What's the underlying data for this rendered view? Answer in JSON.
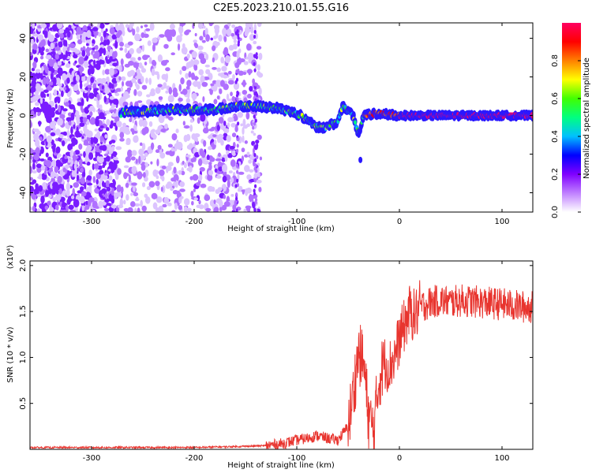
{
  "title": "C2E5.2023.210.01.55.G16",
  "colors": {
    "snr_line": "#e8342e",
    "axis": "#000000"
  },
  "chart_data": [
    {
      "type": "heatmap",
      "xlabel": "Height of straight line (km)",
      "ylabel": "Frequency (Hz)",
      "xlim": [
        -360,
        130
      ],
      "ylim": [
        -50,
        48
      ],
      "x_ticks": [
        -300,
        -200,
        -100,
        0,
        100
      ],
      "y_ticks": [
        -40,
        -20,
        0,
        20,
        40
      ],
      "colorbar": {
        "label": "Normalized spectral amplitude",
        "range": [
          0,
          1
        ],
        "ticks": [
          "0.0",
          "0.2",
          "0.4",
          "0.6",
          "0.8"
        ],
        "tick_values": [
          0,
          0.2,
          0.4,
          0.6,
          0.8
        ],
        "colormap": [
          "#ffffff",
          "#c080ff",
          "#8000ff",
          "#0000ff",
          "#00c0ff",
          "#00ff80",
          "#40ff00",
          "#ffff00",
          "#ff8000",
          "#ff0000",
          "#ff0060"
        ]
      },
      "ridge": [
        {
          "x": -270,
          "y": 2
        },
        {
          "x": -250,
          "y": 2
        },
        {
          "x": -220,
          "y": 3
        },
        {
          "x": -200,
          "y": 3
        },
        {
          "x": -180,
          "y": 3
        },
        {
          "x": -160,
          "y": 5
        },
        {
          "x": -140,
          "y": 5
        },
        {
          "x": -120,
          "y": 4
        },
        {
          "x": -100,
          "y": 1
        },
        {
          "x": -90,
          "y": -2
        },
        {
          "x": -80,
          "y": -6
        },
        {
          "x": -70,
          "y": -6
        },
        {
          "x": -60,
          "y": -3
        },
        {
          "x": -55,
          "y": 5
        },
        {
          "x": -45,
          "y": 0
        },
        {
          "x": -40,
          "y": -10
        },
        {
          "x": -35,
          "y": 0
        },
        {
          "x": -20,
          "y": 1
        },
        {
          "x": 0,
          "y": 0
        },
        {
          "x": 50,
          "y": 0
        },
        {
          "x": 100,
          "y": 0
        },
        {
          "x": 130,
          "y": 0
        }
      ]
    },
    {
      "type": "line",
      "xlabel": "Height of straight line (km)",
      "ylabel": "SNR (10 * v/v)",
      "y_multiplier": "(x10⁴)",
      "xlim": [
        -360,
        130
      ],
      "ylim": [
        0,
        2.05
      ],
      "x_ticks": [
        -300,
        -200,
        -100,
        0,
        100
      ],
      "y_ticks": [
        0.5,
        1.0,
        1.5,
        2.0
      ],
      "y_tick_labels": [
        "0.5",
        "1.0",
        "1.5",
        "2.0"
      ],
      "series": [
        {
          "x": [
            -360,
            -300,
            -250,
            -200,
            -160,
            -130,
            -115,
            -100,
            -90,
            -80,
            -70,
            -60,
            -50,
            -45,
            -40,
            -35,
            -30,
            -25,
            -20,
            -15,
            -10,
            -5,
            0,
            5,
            10,
            15,
            20,
            30,
            40,
            50,
            60,
            80,
            100,
            120,
            130
          ],
          "y": [
            0.02,
            0.02,
            0.02,
            0.02,
            0.03,
            0.04,
            0.06,
            0.1,
            0.12,
            0.15,
            0.12,
            0.1,
            0.25,
            0.6,
            1.05,
            0.95,
            0.35,
            0.2,
            0.75,
            0.95,
            0.9,
            1.0,
            1.2,
            1.35,
            1.5,
            1.45,
            1.55,
            1.6,
            1.62,
            1.6,
            1.62,
            1.6,
            1.58,
            1.55,
            1.55
          ]
        }
      ]
    }
  ]
}
